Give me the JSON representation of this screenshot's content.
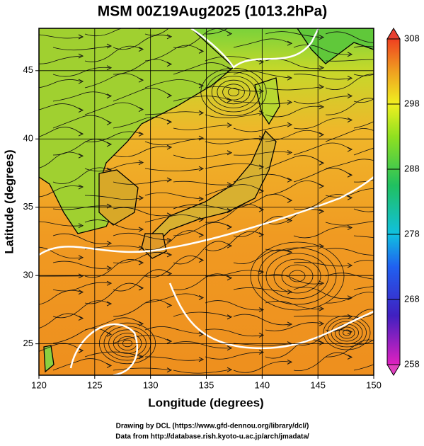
{
  "chart_data": {
    "type": "map",
    "title": "MSM 00Z19Aug2025 (1013.2hPa)",
    "xlabel": "Longitude (degrees)",
    "ylabel": "Latitude  (degrees)",
    "xlim": [
      120,
      150
    ],
    "xticks": [
      120,
      125,
      130,
      135,
      140,
      145,
      150
    ],
    "ylim": [
      22.7,
      48.1
    ],
    "yticks": [
      25,
      30,
      35,
      40,
      45
    ],
    "grid": true,
    "colorbar": {
      "lim": [
        258,
        308
      ],
      "ticks": [
        258,
        268,
        278,
        288,
        298,
        308
      ]
    },
    "credits": [
      "Drawing by DCL (https://www.gfd-dennou.org/library/dcl/)",
      "Data from http://database.rish.kyoto-u.ac.jp/arch/jmadata/"
    ]
  }
}
